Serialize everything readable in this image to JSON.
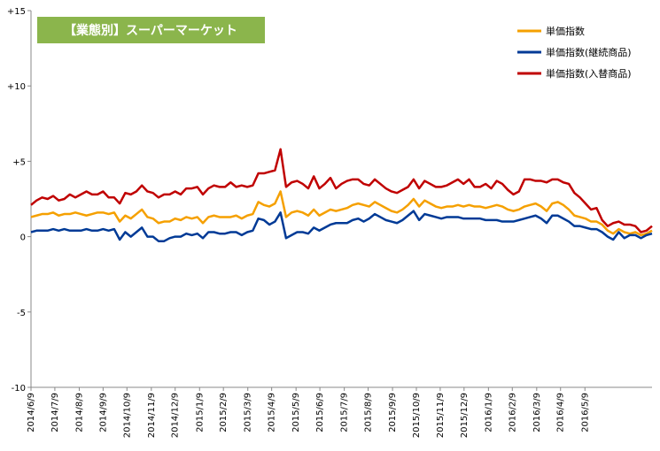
{
  "chart_data": {
    "type": "line",
    "title": "【業態別】スーパーマーケット",
    "xlabel": "",
    "ylabel": "",
    "ylim": [
      -10,
      15
    ],
    "y_ticks": [
      {
        "value": 15,
        "label": "+15"
      },
      {
        "value": 10,
        "label": "+10"
      },
      {
        "value": 5,
        "label": "+5"
      },
      {
        "value": 0,
        "label": "0"
      },
      {
        "value": -5,
        "label": "-5"
      },
      {
        "value": -10,
        "label": "-10"
      }
    ],
    "x_tick_labels": [
      "2014/6/9",
      "2014/7/9",
      "2014/8/9",
      "2014/9/9",
      "2014/10/9",
      "2014/11/9",
      "2014/12/9",
      "2015/1/9",
      "2015/2/9",
      "2015/3/9",
      "2015/4/9",
      "2015/5/9",
      "2015/6/9",
      "2015/7/9",
      "2015/8/9",
      "2015/9/9",
      "2015/10/9",
      "2015/11/9",
      "2015/12/9",
      "2016/1/9",
      "2016/2/9",
      "2016/3/9",
      "2016/4/9",
      "2016/5/9"
    ],
    "x_tick_positions": [
      0,
      4.3,
      8.7,
      13.0,
      17.3,
      21.7,
      26.0,
      30.4,
      34.7,
      39.1,
      43.4,
      47.8,
      52.1,
      56.5,
      60.8,
      65.2,
      69.5,
      73.8,
      78.1,
      82.5,
      86.8,
      91.2,
      95.5,
      99.9
    ],
    "legend_position": "top-right",
    "grid": false,
    "series": [
      {
        "name": "単価指数",
        "color": "#f5a000",
        "values": [
          1.3,
          1.4,
          1.5,
          1.5,
          1.6,
          1.4,
          1.5,
          1.5,
          1.6,
          1.5,
          1.4,
          1.5,
          1.6,
          1.6,
          1.5,
          1.6,
          1.0,
          1.4,
          1.2,
          1.5,
          1.8,
          1.3,
          1.2,
          0.9,
          1.0,
          1.0,
          1.2,
          1.1,
          1.3,
          1.2,
          1.3,
          0.9,
          1.3,
          1.4,
          1.3,
          1.3,
          1.3,
          1.4,
          1.2,
          1.4,
          1.5,
          2.3,
          2.1,
          2.0,
          2.2,
          3.0,
          1.3,
          1.6,
          1.7,
          1.6,
          1.4,
          1.8,
          1.4,
          1.6,
          1.8,
          1.7,
          1.8,
          1.9,
          2.1,
          2.2,
          2.1,
          2.0,
          2.3,
          2.1,
          1.9,
          1.7,
          1.6,
          1.8,
          2.1,
          2.5,
          2.0,
          2.4,
          2.2,
          2.0,
          1.9,
          2.0,
          2.0,
          2.1,
          2.0,
          2.1,
          2.0,
          2.0,
          1.9,
          2.0,
          2.1,
          2.0,
          1.8,
          1.7,
          1.8,
          2.0,
          2.1,
          2.2,
          2.0,
          1.7,
          2.2,
          2.3,
          2.1,
          1.8,
          1.4,
          1.3,
          1.2,
          1.0,
          1.0,
          0.8,
          0.4,
          0.2,
          0.5,
          0.3,
          0.2,
          0.3,
          0.1,
          0.2,
          0.4
        ]
      },
      {
        "name": "単価指数(継続商品)",
        "color": "#003a96",
        "values": [
          0.3,
          0.4,
          0.4,
          0.4,
          0.5,
          0.4,
          0.5,
          0.4,
          0.4,
          0.4,
          0.5,
          0.4,
          0.4,
          0.5,
          0.4,
          0.5,
          -0.2,
          0.3,
          0.0,
          0.3,
          0.6,
          0.0,
          0.0,
          -0.3,
          -0.3,
          -0.1,
          0.0,
          0.0,
          0.2,
          0.1,
          0.2,
          -0.1,
          0.3,
          0.3,
          0.2,
          0.2,
          0.3,
          0.3,
          0.1,
          0.3,
          0.4,
          1.2,
          1.1,
          0.8,
          1.0,
          1.6,
          -0.1,
          0.1,
          0.3,
          0.3,
          0.2,
          0.6,
          0.4,
          0.6,
          0.8,
          0.9,
          0.9,
          0.9,
          1.1,
          1.2,
          1.0,
          1.2,
          1.5,
          1.3,
          1.1,
          1.0,
          0.9,
          1.1,
          1.4,
          1.7,
          1.1,
          1.5,
          1.4,
          1.3,
          1.2,
          1.3,
          1.3,
          1.3,
          1.2,
          1.2,
          1.2,
          1.2,
          1.1,
          1.1,
          1.1,
          1.0,
          1.0,
          1.0,
          1.1,
          1.2,
          1.3,
          1.4,
          1.2,
          0.9,
          1.4,
          1.4,
          1.2,
          1.0,
          0.7,
          0.7,
          0.6,
          0.5,
          0.5,
          0.3,
          0.0,
          -0.2,
          0.3,
          -0.1,
          0.1,
          0.1,
          -0.1,
          0.1,
          0.2
        ]
      },
      {
        "name": "単価指数(入替商品)",
        "color": "#c00000",
        "values": [
          2.1,
          2.4,
          2.6,
          2.5,
          2.7,
          2.4,
          2.5,
          2.8,
          2.6,
          2.8,
          3.0,
          2.8,
          2.8,
          3.0,
          2.6,
          2.6,
          2.2,
          2.9,
          2.8,
          3.0,
          3.4,
          3.0,
          2.9,
          2.6,
          2.8,
          2.8,
          3.0,
          2.8,
          3.2,
          3.2,
          3.3,
          2.8,
          3.2,
          3.4,
          3.3,
          3.3,
          3.6,
          3.3,
          3.4,
          3.3,
          3.4,
          4.2,
          4.2,
          4.3,
          4.4,
          5.8,
          3.3,
          3.6,
          3.7,
          3.5,
          3.2,
          4.0,
          3.2,
          3.5,
          3.9,
          3.2,
          3.5,
          3.7,
          3.8,
          3.8,
          3.5,
          3.4,
          3.8,
          3.5,
          3.2,
          3.0,
          2.9,
          3.1,
          3.3,
          3.8,
          3.2,
          3.7,
          3.5,
          3.3,
          3.3,
          3.4,
          3.6,
          3.8,
          3.5,
          3.8,
          3.3,
          3.3,
          3.5,
          3.2,
          3.7,
          3.5,
          3.1,
          2.8,
          3.0,
          3.8,
          3.8,
          3.7,
          3.7,
          3.6,
          3.8,
          3.8,
          3.6,
          3.5,
          2.9,
          2.6,
          2.2,
          1.8,
          1.9,
          1.1,
          0.7,
          0.9,
          1.0,
          0.8,
          0.8,
          0.7,
          0.3,
          0.4,
          0.7
        ]
      }
    ]
  }
}
